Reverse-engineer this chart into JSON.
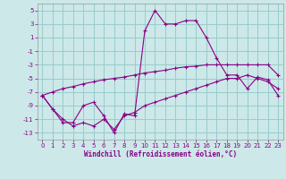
{
  "x": [
    0,
    1,
    2,
    3,
    4,
    5,
    6,
    7,
    8,
    9,
    10,
    11,
    12,
    13,
    14,
    15,
    16,
    17,
    18,
    19,
    20,
    21,
    22,
    23
  ],
  "line_main": [
    -7.5,
    -9.5,
    -11.5,
    -11.5,
    -9.0,
    -8.5,
    -10.5,
    -13.0,
    -10.2,
    -10.5,
    2.0,
    5.0,
    3.0,
    3.0,
    3.5,
    3.5,
    1.0,
    -2.0,
    -4.5,
    -4.5,
    -6.5,
    -4.8,
    -5.2,
    -7.5
  ],
  "line_upper": [
    -7.5,
    -7.0,
    -6.5,
    -6.2,
    -5.8,
    -5.5,
    -5.2,
    -5.0,
    -4.8,
    -4.5,
    -4.2,
    -4.0,
    -3.8,
    -3.5,
    -3.3,
    -3.2,
    -3.0,
    -3.0,
    -3.0,
    -3.0,
    -3.0,
    -3.0,
    -3.0,
    -4.5
  ],
  "line_lower": [
    -7.5,
    -9.5,
    -11.0,
    -12.0,
    -11.5,
    -12.0,
    -11.0,
    -12.5,
    -10.5,
    -10.0,
    -9.0,
    -8.5,
    -8.0,
    -7.5,
    -7.0,
    -6.5,
    -6.0,
    -5.5,
    -5.0,
    -5.0,
    -4.5,
    -5.0,
    -5.5,
    -6.5
  ],
  "bg_color": "#cce8e8",
  "grid_color": "#99cccc",
  "line_color": "#880088",
  "xlabel": "Windchill (Refroidissement éolien,°C)",
  "xlim": [
    -0.5,
    23.5
  ],
  "ylim": [
    -14,
    6
  ],
  "yticks": [
    5,
    3,
    1,
    -1,
    -3,
    -5,
    -7,
    -9,
    -11,
    -13
  ],
  "xticks": [
    0,
    1,
    2,
    3,
    4,
    5,
    6,
    7,
    8,
    9,
    10,
    11,
    12,
    13,
    14,
    15,
    16,
    17,
    18,
    19,
    20,
    21,
    22,
    23
  ]
}
